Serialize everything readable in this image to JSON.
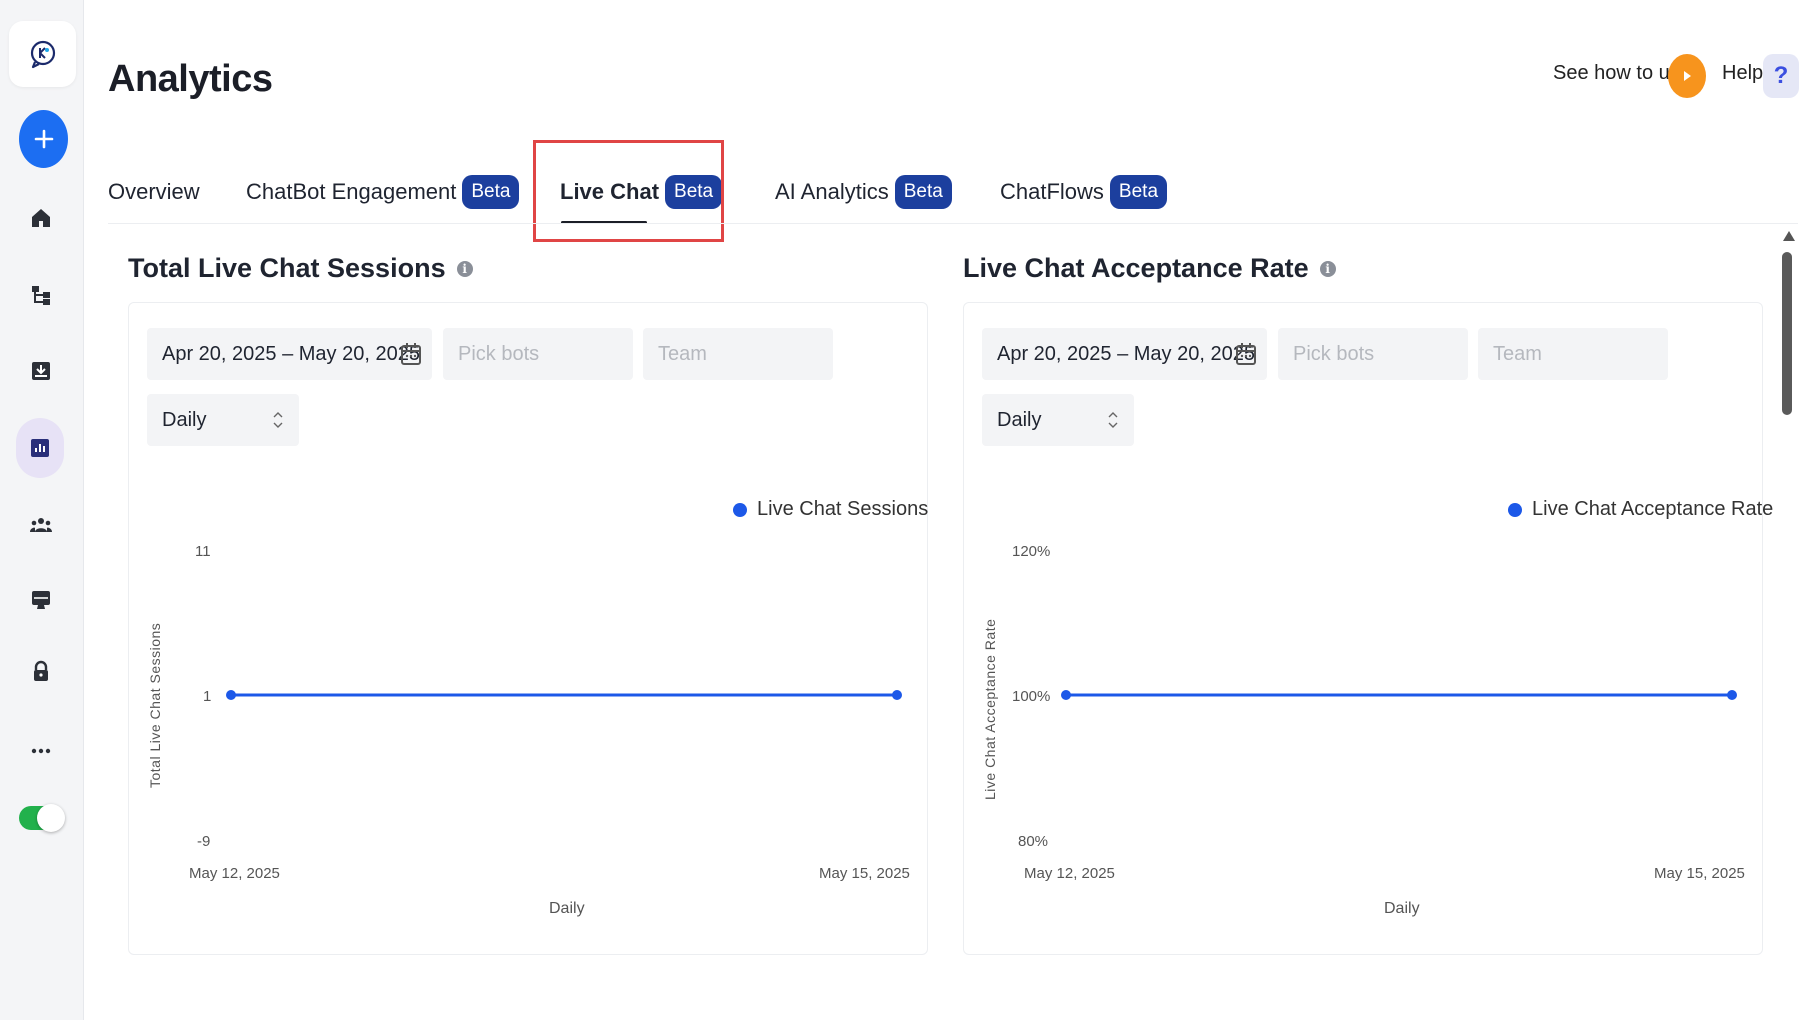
{
  "page": {
    "title": "Analytics"
  },
  "header": {
    "see_how_label": "See how to use",
    "help_label": "Help",
    "help_glyph": "?"
  },
  "sidebar": {
    "items": [
      {
        "name": "home",
        "icon": "home-icon"
      },
      {
        "name": "flows",
        "icon": "flow-icon"
      },
      {
        "name": "inbox",
        "icon": "inbox-icon"
      },
      {
        "name": "analytics",
        "icon": "analytics-icon",
        "active": true
      },
      {
        "name": "team",
        "icon": "team-icon"
      },
      {
        "name": "integrations",
        "icon": "monitor-icon"
      },
      {
        "name": "security",
        "icon": "lock-icon"
      },
      {
        "name": "more",
        "icon": "more-icon"
      }
    ],
    "toggle_on": true
  },
  "tabs": [
    {
      "label": "Overview",
      "badge": ""
    },
    {
      "label": "ChatBot Engagement",
      "badge": "Beta"
    },
    {
      "label": "Live Chat",
      "badge": "Beta",
      "active": true
    },
    {
      "label": "AI Analytics",
      "badge": "Beta"
    },
    {
      "label": "ChatFlows",
      "badge": "Beta"
    }
  ],
  "panels": [
    {
      "title": "Total Live Chat Sessions",
      "date_range": "Apr 20, 2025 – May 20, 2025",
      "bots_placeholder": "Pick bots",
      "team_placeholder": "Team",
      "granularity": "Daily"
    },
    {
      "title": "Live Chat Acceptance Rate",
      "date_range": "Apr 20, 2025 – May 20, 2025",
      "bots_placeholder": "Pick bots",
      "team_placeholder": "Team",
      "granularity": "Daily"
    }
  ],
  "colors": {
    "accent": "#1c58e8",
    "badge": "#1c3f9e",
    "highlight": "#e04545",
    "play": "#f7941d"
  },
  "chart_data": [
    {
      "type": "line",
      "legend": "Live Chat Sessions",
      "legend_position": "top-right",
      "ylabel": "Total Live Chat Sessions",
      "xlabel": "Daily",
      "yticks": [
        "11",
        "1",
        "-9"
      ],
      "ylim": [
        -9,
        11
      ],
      "categories": [
        "May 12, 2025",
        "May 15, 2025"
      ],
      "series": [
        {
          "name": "Live Chat Sessions",
          "values": [
            1,
            1
          ]
        }
      ]
    },
    {
      "type": "line",
      "legend": "Live Chat Acceptance Rate",
      "legend_position": "top-right",
      "ylabel": "Live Chat Acceptance Rate",
      "xlabel": "Daily",
      "yticks": [
        "120%",
        "100%",
        "80%"
      ],
      "ylim": [
        80,
        120
      ],
      "categories": [
        "May 12, 2025",
        "May 15, 2025"
      ],
      "series": [
        {
          "name": "Live Chat Acceptance Rate",
          "values": [
            100,
            100
          ]
        }
      ]
    }
  ]
}
